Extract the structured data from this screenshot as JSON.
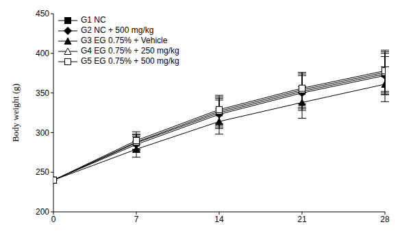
{
  "chart_data": {
    "type": "line",
    "y_label": "Body weight (g)",
    "x": [
      0,
      7,
      14,
      21,
      28
    ],
    "xlim": [
      0,
      28
    ],
    "xticks": [
      0,
      7,
      14,
      21,
      28
    ],
    "ylim": [
      200,
      450
    ],
    "yticks": [
      200,
      250,
      300,
      350,
      400,
      450
    ],
    "grid": false,
    "legend": "upper left",
    "series": [
      {
        "name": "G1  NC",
        "color": "#000000",
        "marker": "square",
        "values": [
          240,
          287,
          325,
          352,
          374
        ],
        "errors": [
          0,
          10,
          18,
          22,
          26
        ]
      },
      {
        "name": "G2  NC + 500 mg/kg",
        "color": "#000000",
        "marker": "diamond",
        "values": [
          240,
          285,
          323,
          350,
          372
        ],
        "errors": [
          0,
          10,
          18,
          22,
          24
        ]
      },
      {
        "name": "G3  EG 0.75% + Vehicle",
        "color": "#000000",
        "marker": "triangle",
        "values": [
          240,
          279,
          314,
          338,
          361
        ],
        "errors": [
          0,
          10,
          16,
          20,
          22
        ]
      },
      {
        "name": "G4  EG 0.75% + 250 mg/kg",
        "color": "#000000",
        "marker": "triangle-open",
        "values": [
          240,
          288,
          327,
          354,
          376
        ],
        "errors": [
          0,
          10,
          18,
          22,
          26
        ]
      },
      {
        "name": "G5  EG 0.75% + 500 mg/kg",
        "color": "#000000",
        "marker": "square-open",
        "values": [
          240,
          290,
          329,
          356,
          378
        ],
        "errors": [
          0,
          11,
          18,
          20,
          26
        ]
      }
    ]
  }
}
